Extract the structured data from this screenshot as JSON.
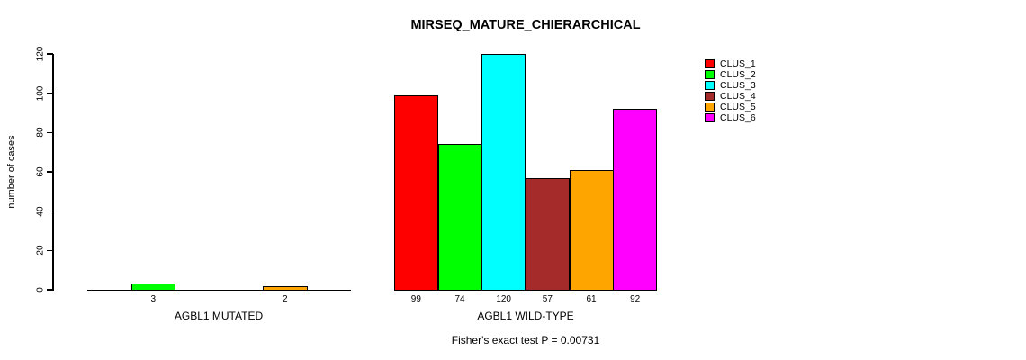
{
  "figure": {
    "title": "MIRSEQ_MATURE_CHIERARCHICAL",
    "footnote": "Fisher's exact test P = 0.00731"
  },
  "colors": {
    "foreground": "#000000",
    "background": "#FFFFFF"
  },
  "chart_data": {
    "type": "bar",
    "title": "MIRSEQ_MATURE_CHIERARCHICAL",
    "xlabel": "",
    "ylabel": "number of cases",
    "ylim": [
      0,
      120
    ],
    "yticks": [
      0,
      20,
      40,
      60,
      80,
      100,
      120
    ],
    "grid": false,
    "legend_position": "right",
    "categories": [
      "AGBL1 MUTATED",
      "AGBL1 WILD-TYPE"
    ],
    "series": [
      {
        "name": "CLUS_1",
        "color": "#FF0000",
        "values": [
          0,
          99
        ]
      },
      {
        "name": "CLUS_2",
        "color": "#00FF00",
        "values": [
          3,
          74
        ]
      },
      {
        "name": "CLUS_3",
        "color": "#00FFFF",
        "values": [
          0,
          120
        ]
      },
      {
        "name": "CLUS_4",
        "color": "#A52A2A",
        "values": [
          0,
          57
        ]
      },
      {
        "name": "CLUS_5",
        "color": "#FFA500",
        "values": [
          2,
          61
        ]
      },
      {
        "name": "CLUS_6",
        "color": "#FF00FF",
        "values": [
          0,
          92
        ]
      }
    ],
    "bar_value_labels": [
      {
        "category": "AGBL1 MUTATED",
        "labels": [
          "3",
          "2"
        ]
      },
      {
        "category": "AGBL1 WILD-TYPE",
        "labels": [
          "99",
          "74",
          "120",
          "57",
          "61",
          "92"
        ]
      }
    ],
    "annotation": "Fisher's exact test P = 0.00731"
  }
}
